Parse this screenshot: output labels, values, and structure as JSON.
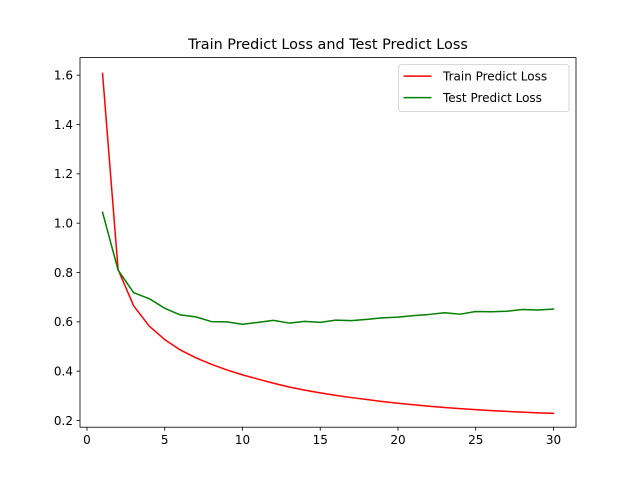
{
  "chart_data": {
    "type": "line",
    "title": "Train Predict Loss and Test Predict Loss",
    "xlabel": "",
    "ylabel": "",
    "xlim": [
      -0.45,
      31.45
    ],
    "ylim": [
      0.1729,
      1.6711
    ],
    "x_ticks": [
      0,
      5,
      10,
      15,
      20,
      25,
      30
    ],
    "x_tick_labels": [
      "0",
      "5",
      "10",
      "15",
      "20",
      "25",
      "30"
    ],
    "y_ticks": [
      0.2,
      0.4,
      0.6,
      0.8,
      1.0,
      1.2,
      1.4,
      1.6
    ],
    "y_tick_labels": [
      "0.2",
      "0.4",
      "0.6",
      "0.8",
      "1.0",
      "1.2",
      "1.4",
      "1.6"
    ],
    "grid": false,
    "legend_position": "top-right",
    "x": [
      1,
      2,
      3,
      4,
      5,
      6,
      7,
      8,
      9,
      10,
      11,
      12,
      13,
      14,
      15,
      16,
      17,
      18,
      19,
      20,
      21,
      22,
      23,
      24,
      25,
      26,
      27,
      28,
      29,
      30
    ],
    "series": [
      {
        "name": "Train Predict Loss",
        "color": "#ff0000",
        "values": [
          1.607,
          0.812,
          0.665,
          0.583,
          0.528,
          0.486,
          0.454,
          0.428,
          0.405,
          0.385,
          0.368,
          0.351,
          0.336,
          0.323,
          0.312,
          0.302,
          0.293,
          0.285,
          0.277,
          0.27,
          0.264,
          0.258,
          0.253,
          0.248,
          0.244,
          0.24,
          0.237,
          0.234,
          0.231,
          0.229
        ]
      },
      {
        "name": "Test Predict Loss",
        "color": "#008000",
        "values": [
          1.044,
          0.81,
          0.718,
          0.694,
          0.655,
          0.628,
          0.62,
          0.601,
          0.6,
          0.59,
          0.598,
          0.606,
          0.595,
          0.602,
          0.598,
          0.607,
          0.605,
          0.61,
          0.616,
          0.619,
          0.625,
          0.63,
          0.637,
          0.631,
          0.642,
          0.641,
          0.643,
          0.65,
          0.648,
          0.652
        ]
      }
    ]
  }
}
